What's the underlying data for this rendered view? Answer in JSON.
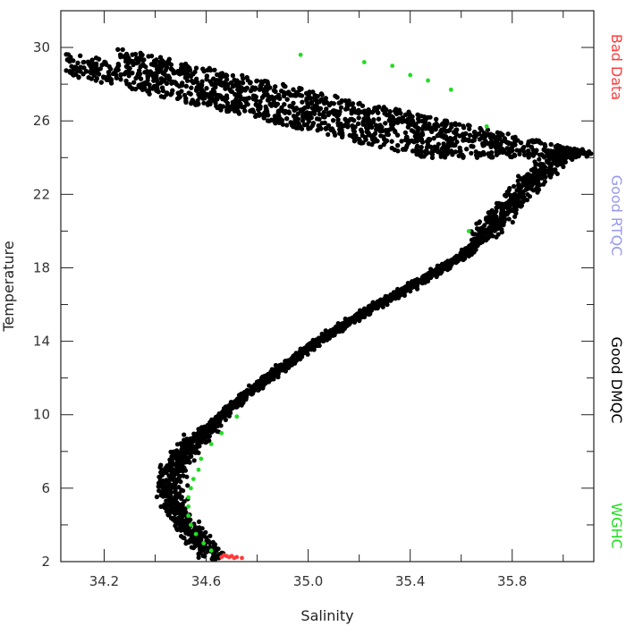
{
  "chart_data": {
    "type": "scatter",
    "xlabel": "Salinity",
    "ylabel": "Temperature",
    "xlim": [
      34.03,
      36.12
    ],
    "ylim": [
      2.0,
      32.0
    ],
    "x_ticks": [
      34.2,
      34.6,
      35.0,
      35.4,
      35.8
    ],
    "x_tick_labels": [
      "34.2",
      "34.6",
      "35.0",
      "35.4",
      "35.8"
    ],
    "y_ticks": [
      2,
      6,
      10,
      14,
      18,
      22,
      26,
      30
    ],
    "y_tick_labels": [
      "2",
      "6",
      "10",
      "14",
      "18",
      "22",
      "26",
      "30"
    ],
    "grid": false,
    "legend_position": "right",
    "legend": [
      {
        "label": "Bad  Data",
        "color": "#ff3b3b"
      },
      {
        "label": "Good  RTQC",
        "color": "#9999ee"
      },
      {
        "label": "Good  DMQC",
        "color": "#000000"
      },
      {
        "label": "WGHC",
        "color": "#22dd22"
      }
    ],
    "series": [
      {
        "name": "Good  DMQC",
        "color": "#000000",
        "curve": [
          [
            34.63,
            2.2
          ],
          [
            34.6,
            2.7
          ],
          [
            34.56,
            3.4
          ],
          [
            34.51,
            4.2
          ],
          [
            34.47,
            5.0
          ],
          [
            34.45,
            5.8
          ],
          [
            34.46,
            6.6
          ],
          [
            34.49,
            7.4
          ],
          [
            34.55,
            8.4
          ],
          [
            34.62,
            9.4
          ],
          [
            34.7,
            10.4
          ],
          [
            34.8,
            11.6
          ],
          [
            34.92,
            12.8
          ],
          [
            35.04,
            14.0
          ],
          [
            35.2,
            15.4
          ],
          [
            35.35,
            16.6
          ],
          [
            35.48,
            17.6
          ],
          [
            35.6,
            18.6
          ],
          [
            35.68,
            19.6
          ],
          [
            35.74,
            20.6
          ],
          [
            35.8,
            21.6
          ],
          [
            35.86,
            22.6
          ],
          [
            35.94,
            23.6
          ],
          [
            36.02,
            24.4
          ],
          [
            36.08,
            24.2
          ]
        ],
        "upper_cloud": {
          "x_range": [
            34.05,
            36.08
          ],
          "t_range": [
            24.0,
            31.4
          ]
        }
      },
      {
        "name": "WGHC",
        "color": "#22dd22",
        "values": [
          [
            34.62,
            2.6
          ],
          [
            34.59,
            3.0
          ],
          [
            34.56,
            3.5
          ],
          [
            34.54,
            4.0
          ],
          [
            34.53,
            4.5
          ],
          [
            34.53,
            5.0
          ],
          [
            34.53,
            5.5
          ],
          [
            34.54,
            6.0
          ],
          [
            34.55,
            6.5
          ],
          [
            34.57,
            7.0
          ],
          [
            34.58,
            7.6
          ],
          [
            34.62,
            8.4
          ],
          [
            34.66,
            9.0
          ],
          [
            34.72,
            9.9
          ],
          [
            35.63,
            20.0
          ],
          [
            35.7,
            25.7
          ],
          [
            35.22,
            29.2
          ],
          [
            35.33,
            29.0
          ],
          [
            35.4,
            28.5
          ],
          [
            35.47,
            28.2
          ],
          [
            35.56,
            27.7
          ],
          [
            34.97,
            29.6
          ]
        ]
      },
      {
        "name": "Bad  Data",
        "color": "#ff3b3b",
        "values": [
          [
            34.66,
            2.25
          ],
          [
            34.68,
            2.3
          ],
          [
            34.69,
            2.25
          ],
          [
            34.7,
            2.3
          ],
          [
            34.72,
            2.25
          ],
          [
            34.74,
            2.2
          ],
          [
            34.67,
            2.35
          ],
          [
            34.71,
            2.2
          ]
        ]
      }
    ]
  }
}
